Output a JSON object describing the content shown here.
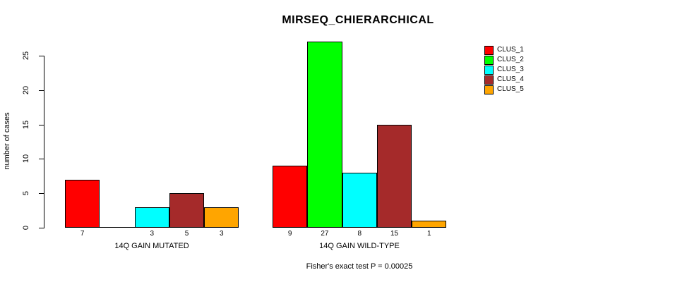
{
  "footer": "Fisher's exact test P = 0.00025",
  "legend": {
    "items": [
      {
        "label": "CLUS_1",
        "color": "#FF0000"
      },
      {
        "label": "CLUS_2",
        "color": "#00FF00"
      },
      {
        "label": "CLUS_3",
        "color": "#00FFFF"
      },
      {
        "label": "CLUS_4",
        "color": "#A52A2A"
      },
      {
        "label": "CLUS_5",
        "color": "#FFA500"
      }
    ],
    "position": "top-right"
  },
  "chart_data": {
    "type": "bar",
    "title": "MIRSEQ_CHIERARCHICAL",
    "xlabel": "",
    "ylabel": "number of cases",
    "ylim": [
      0,
      27
    ],
    "yticks": [
      0,
      5,
      10,
      15,
      20,
      25
    ],
    "grid": false,
    "legend_position": "top-right",
    "series_names": [
      "CLUS_1",
      "CLUS_2",
      "CLUS_3",
      "CLUS_4",
      "CLUS_5"
    ],
    "series_colors": [
      "#FF0000",
      "#00FF00",
      "#00FFFF",
      "#A52A2A",
      "#FFA500"
    ],
    "groups": [
      {
        "label": "14Q GAIN MUTATED",
        "values": [
          7,
          0,
          3,
          5,
          3
        ],
        "bar_labels": [
          "7",
          "",
          "3",
          "5",
          "3"
        ]
      },
      {
        "label": "14Q GAIN WILD-TYPE",
        "values": [
          9,
          27,
          8,
          15,
          1
        ],
        "bar_labels": [
          "9",
          "27",
          "8",
          "15",
          "1"
        ]
      }
    ],
    "footer_annotation": "Fisher's exact test P = 0.00025"
  }
}
